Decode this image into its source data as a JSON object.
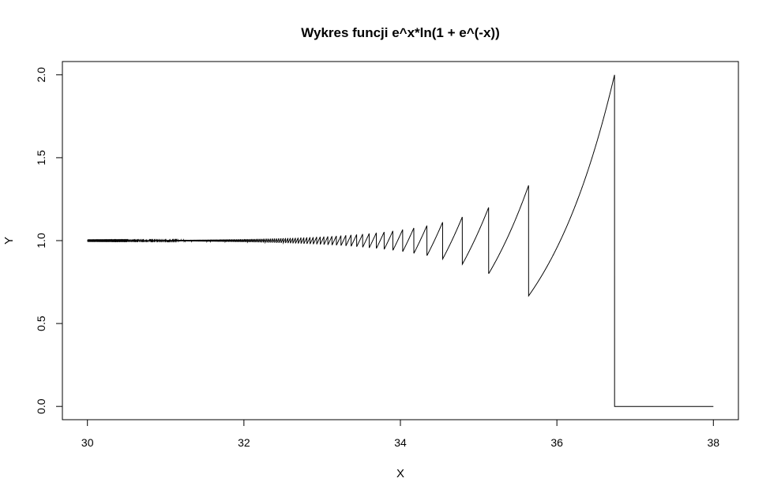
{
  "chart_data": {
    "type": "line",
    "title": "Wykres funcji e^x*ln(1 + e^(-x))",
    "xlabel": "X",
    "ylabel": "Y",
    "xlim": [
      29.68,
      38.32
    ],
    "ylim": [
      -0.08,
      2.08
    ],
    "xticks": [
      30,
      32,
      34,
      36,
      38
    ],
    "xtick_labels": [
      "30",
      "32",
      "34",
      "36",
      "38"
    ],
    "yticks": [
      0.0,
      0.5,
      1.0,
      1.5,
      2.0
    ],
    "ytick_labels": [
      "0.0",
      "0.5",
      "1.0",
      "1.5",
      "2.0"
    ],
    "grid": false,
    "series": [
      {
        "color": "#000000",
        "description": "computed e^x*ln(1+e^(-x)) with double-precision rounding; sawtooth grows from ~1.0 near x=33 to a peak of ~1.98 at x≈36.74, then drops to 0 until x=38",
        "x": [
          30.0,
          30.5,
          31.0,
          31.5,
          32.0,
          32.5,
          33.0,
          33.2,
          33.4,
          33.6,
          33.8,
          34.0,
          34.2,
          34.4,
          34.6,
          34.8,
          35.0,
          35.12,
          35.13,
          35.4,
          35.62,
          35.63,
          36.0,
          36.4,
          36.74,
          36.75,
          37.0,
          37.5,
          38.0
        ],
        "y": [
          1.0,
          1.0,
          1.0,
          1.0,
          1.0,
          1.0,
          1.01,
          1.02,
          1.03,
          1.04,
          1.05,
          1.06,
          1.08,
          1.1,
          1.12,
          1.14,
          1.17,
          1.19,
          0.8,
          1.05,
          1.32,
          0.67,
          0.97,
          1.44,
          1.98,
          0.0,
          0.0,
          0.0,
          0.0
        ]
      }
    ]
  }
}
